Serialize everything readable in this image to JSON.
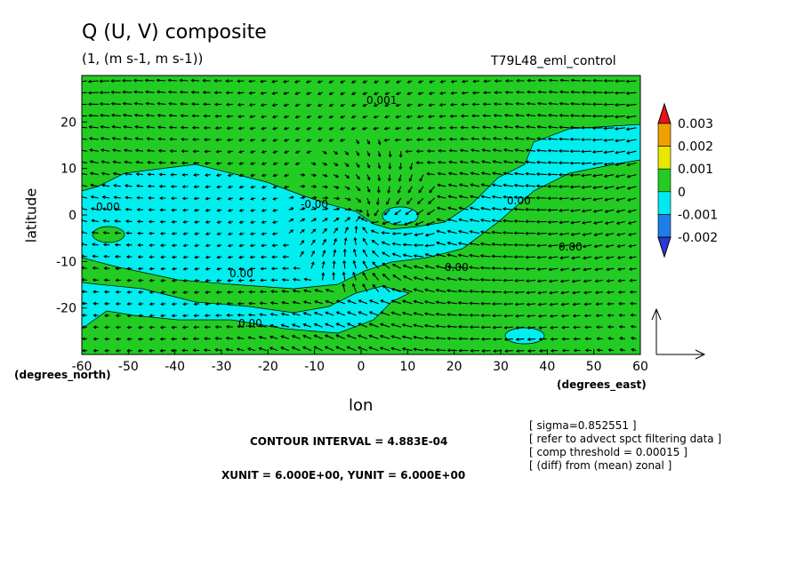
{
  "chart_data": {
    "type": "heatmap",
    "title": "Q (U, V) composite",
    "subtitle": "(1, (m s-1, m s-1))",
    "run_label": "T79L48_eml_control",
    "xlabel": "lon",
    "ylabel": "latitude",
    "x_unit_label": "(degrees_east)",
    "y_unit_label": "(degrees_north)",
    "xlim": [
      -60,
      60
    ],
    "ylim": [
      -30,
      30
    ],
    "x_ticks": [
      "-60",
      "-50",
      "-40",
      "-30",
      "-20",
      "-10",
      "0",
      "10",
      "20",
      "30",
      "40",
      "50",
      "60"
    ],
    "y_ticks": [
      "20",
      "10",
      "0",
      "-10",
      "-20"
    ],
    "colorbar": {
      "labels": [
        "0.003",
        "0.002",
        "0.001",
        "0",
        "-0.001",
        "-0.002"
      ],
      "colors": [
        "#e8131a",
        "#f0a000",
        "#e8e800",
        "#22cc22",
        "#00e8f0",
        "#1e7fe8",
        "#2a3ad8"
      ]
    },
    "contour_labels": [
      "0.001",
      "0.00",
      "0.00",
      "0.00",
      "0.00",
      "0.00",
      "-0.00",
      "0.00"
    ],
    "grid": false,
    "legend": "right"
  },
  "footer": {
    "contour_interval": "CONTOUR INTERVAL = 4.883E-04",
    "units": "XUNIT = 6.000E+00, YUNIT = 6.000E+00",
    "notes": [
      "[ sigma=0.852551 ]",
      "[ refer to advect spct filtering data ]",
      "[ comp threshold = 0.00015 ]",
      "[ (diff) from (mean) zonal ]"
    ]
  }
}
